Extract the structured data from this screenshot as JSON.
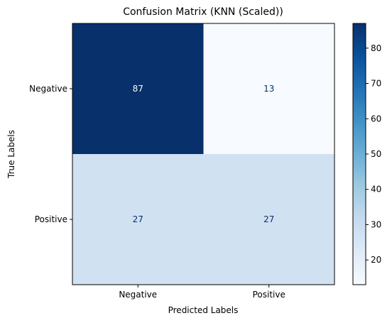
{
  "chart_data": {
    "type": "heatmap",
    "title": "Confusion Matrix (KNN (Scaled))",
    "xlabel": "Predicted Labels",
    "ylabel": "True Labels",
    "x_categories": [
      "Negative",
      "Positive"
    ],
    "y_categories": [
      "Negative",
      "Positive"
    ],
    "values": [
      [
        87,
        13
      ],
      [
        27,
        27
      ]
    ],
    "colormap": "Blues",
    "colorbar": {
      "range": [
        13,
        87
      ],
      "ticks": [
        20,
        30,
        40,
        50,
        60,
        70,
        80
      ]
    },
    "cell_colors": [
      [
        "#08306b",
        "#f7fbff"
      ],
      [
        "#d0e1f2",
        "#d0e1f2"
      ]
    ],
    "text_colors": [
      [
        "#f7fbff",
        "#08306b"
      ],
      [
        "#08306b",
        "#08306b"
      ]
    ],
    "grid": false
  }
}
